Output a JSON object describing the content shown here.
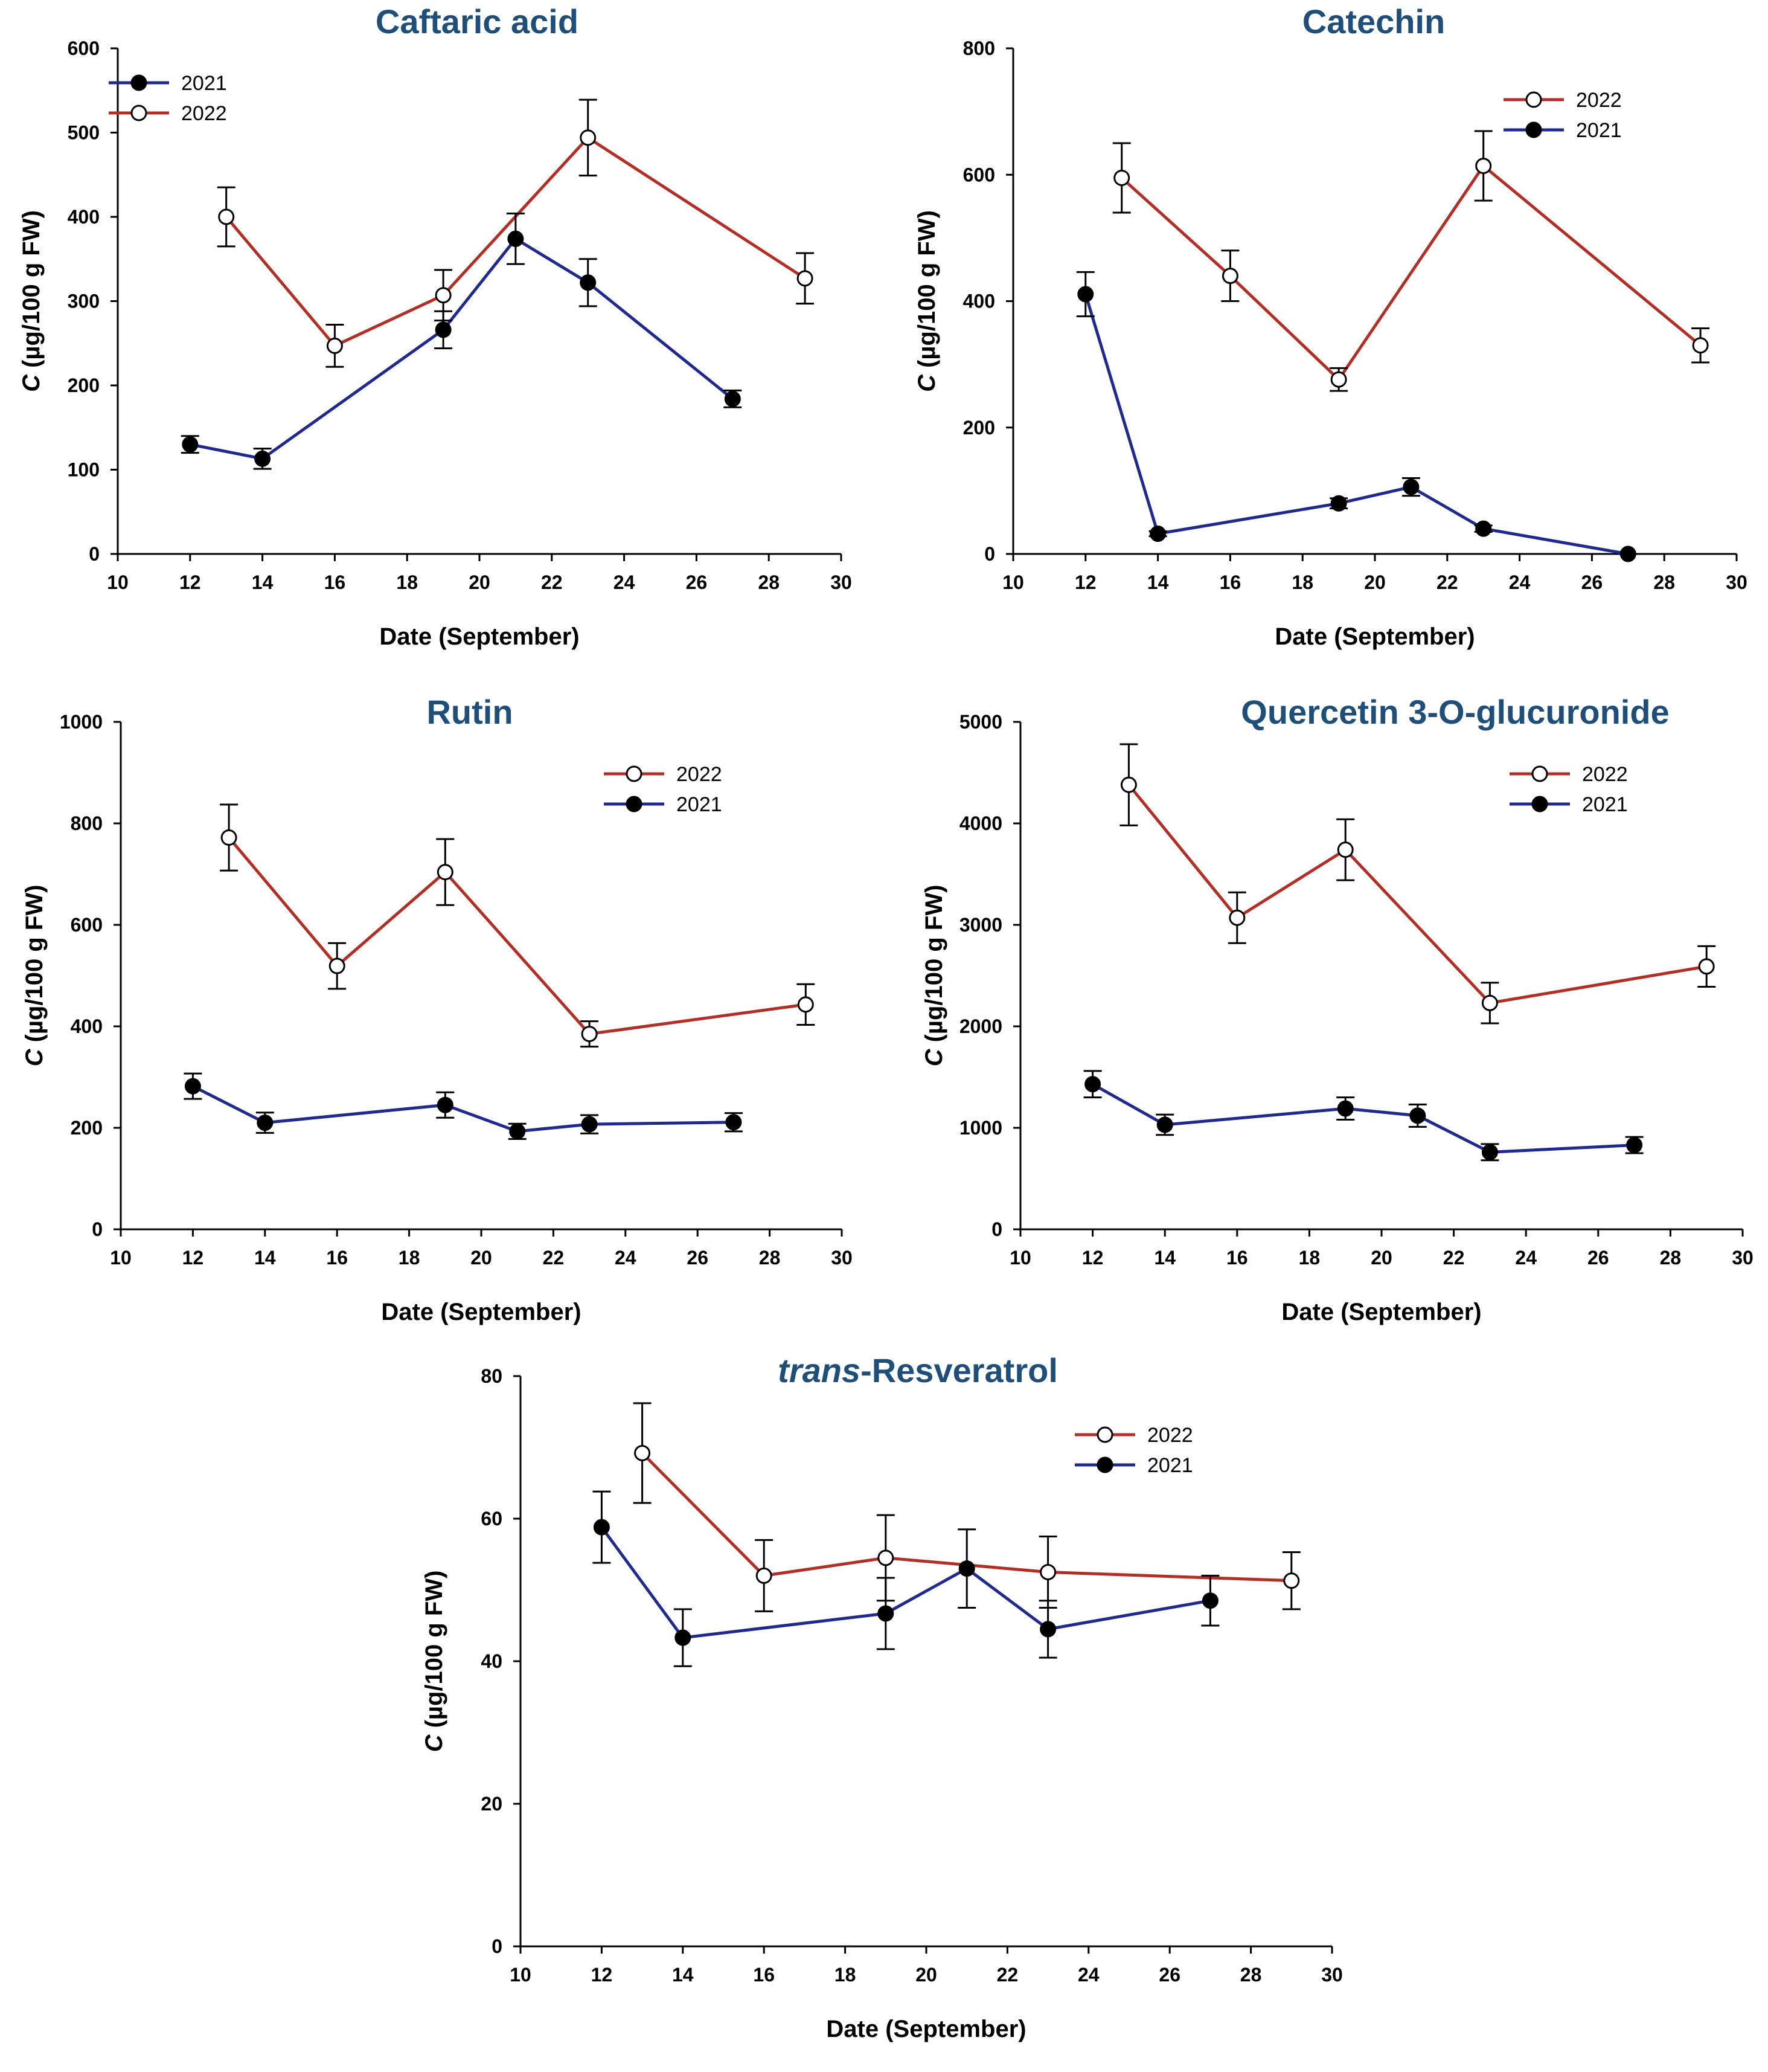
{
  "colors": {
    "series_2022": "#b03028",
    "series_2021": "#1f2a8c",
    "title": "#1f4e79",
    "axis": "#000000"
  },
  "chart_data": [
    {
      "type": "line",
      "title": "Caftaric acid",
      "title_italic_prefix": "",
      "xlabel": "Date (September)",
      "ylabel_italic": "C",
      "ylabel_rest": " (µg/100 g FW)",
      "xlim": [
        10,
        30
      ],
      "xticks": [
        10,
        12,
        14,
        16,
        18,
        20,
        22,
        24,
        26,
        28,
        30
      ],
      "ylim": [
        0,
        600
      ],
      "yticks": [
        0,
        100,
        200,
        300,
        400,
        500,
        600
      ],
      "legend_position": "top-left",
      "legend_order": [
        "2021",
        "2022"
      ],
      "series": [
        {
          "name": "2021",
          "marker": "filled",
          "x": [
            12,
            14,
            19,
            21,
            23,
            27
          ],
          "y": [
            130,
            113,
            266,
            374,
            322,
            184
          ],
          "err": [
            10,
            12,
            22,
            30,
            28,
            10
          ]
        },
        {
          "name": "2022",
          "marker": "open",
          "x": [
            13,
            16,
            19,
            23,
            29
          ],
          "y": [
            400,
            247,
            307,
            494,
            327
          ],
          "err": [
            35,
            25,
            30,
            45,
            30
          ]
        }
      ]
    },
    {
      "type": "line",
      "title": "Catechin",
      "title_italic_prefix": "",
      "xlabel": "Date (September)",
      "ylabel_italic": "C",
      "ylabel_rest": " (µg/100 g FW)",
      "xlim": [
        10,
        30
      ],
      "xticks": [
        10,
        12,
        14,
        16,
        18,
        20,
        22,
        24,
        26,
        28,
        30
      ],
      "ylim": [
        0,
        800
      ],
      "yticks": [
        0,
        200,
        400,
        600,
        800
      ],
      "legend_position": "top-right",
      "legend_order": [
        "2022",
        "2021"
      ],
      "series": [
        {
          "name": "2021",
          "marker": "filled",
          "x": [
            12,
            14,
            19,
            21,
            23,
            27
          ],
          "y": [
            411,
            32,
            80,
            106,
            40,
            0
          ],
          "err": [
            35,
            4,
            8,
            14,
            5,
            0
          ]
        },
        {
          "name": "2022",
          "marker": "open",
          "x": [
            13,
            16,
            19,
            23,
            29
          ],
          "y": [
            595,
            440,
            276,
            614,
            330
          ],
          "err": [
            55,
            40,
            18,
            55,
            27
          ]
        }
      ]
    },
    {
      "type": "line",
      "title": "Rutin",
      "title_italic_prefix": "",
      "xlabel": "Date (September)",
      "ylabel_italic": "C",
      "ylabel_rest": " (µg/100 g FW)",
      "xlim": [
        10,
        30
      ],
      "xticks": [
        10,
        12,
        14,
        16,
        18,
        20,
        22,
        24,
        26,
        28,
        30
      ],
      "ylim": [
        0,
        1000
      ],
      "yticks": [
        0,
        200,
        400,
        600,
        800,
        1000
      ],
      "legend_position": "top-right",
      "legend_order": [
        "2022",
        "2021"
      ],
      "series": [
        {
          "name": "2021",
          "marker": "filled",
          "x": [
            12,
            14,
            19,
            21,
            23,
            27
          ],
          "y": [
            282,
            210,
            245,
            193,
            207,
            211
          ],
          "err": [
            25,
            20,
            25,
            15,
            18,
            18
          ]
        },
        {
          "name": "2022",
          "marker": "open",
          "x": [
            13,
            16,
            19,
            23,
            29
          ],
          "y": [
            772,
            519,
            704,
            385,
            443
          ],
          "err": [
            65,
            45,
            65,
            25,
            40
          ]
        }
      ]
    },
    {
      "type": "line",
      "title": "Quercetin 3-O-glucuronide",
      "title_italic_prefix": "",
      "xlabel": "Date (September)",
      "ylabel_italic": "C",
      "ylabel_rest": " (µg/100 g FW)",
      "xlim": [
        10,
        30
      ],
      "xticks": [
        10,
        12,
        14,
        16,
        18,
        20,
        22,
        24,
        26,
        28,
        30
      ],
      "ylim": [
        0,
        5000
      ],
      "yticks": [
        0,
        1000,
        2000,
        3000,
        4000,
        5000
      ],
      "legend_position": "top-right",
      "legend_order": [
        "2022",
        "2021"
      ],
      "series": [
        {
          "name": "2021",
          "marker": "filled",
          "x": [
            12,
            14,
            19,
            21,
            23,
            27
          ],
          "y": [
            1430,
            1030,
            1190,
            1120,
            760,
            830
          ],
          "err": [
            130,
            100,
            110,
            110,
            80,
            80
          ]
        },
        {
          "name": "2022",
          "marker": "open",
          "x": [
            13,
            16,
            19,
            23,
            29
          ],
          "y": [
            4380,
            3070,
            3740,
            2230,
            2590
          ],
          "err": [
            400,
            250,
            300,
            200,
            200
          ]
        }
      ]
    },
    {
      "type": "line",
      "title": "-Resveratrol",
      "title_italic_prefix": "trans",
      "xlabel": "Date (September)",
      "ylabel_italic": "C",
      "ylabel_rest": " (µg/100 g FW)",
      "xlim": [
        10,
        30
      ],
      "xticks": [
        10,
        12,
        14,
        16,
        18,
        20,
        22,
        24,
        26,
        28,
        30
      ],
      "ylim": [
        0,
        80
      ],
      "yticks": [
        0,
        20,
        40,
        60,
        80
      ],
      "legend_position": "top-right",
      "legend_order": [
        "2022",
        "2021"
      ],
      "series": [
        {
          "name": "2021",
          "marker": "filled",
          "x": [
            12,
            14,
            19,
            21,
            23,
            27
          ],
          "y": [
            58.8,
            43.3,
            46.7,
            53.0,
            44.5,
            48.5
          ],
          "err": [
            5,
            4,
            5,
            5.5,
            4,
            3.5
          ]
        },
        {
          "name": "2022",
          "marker": "open",
          "x": [
            13,
            16,
            19,
            23,
            29
          ],
          "y": [
            69.2,
            52.0,
            54.5,
            52.5,
            51.3
          ],
          "err": [
            7,
            5,
            6,
            5,
            4
          ]
        }
      ]
    }
  ]
}
